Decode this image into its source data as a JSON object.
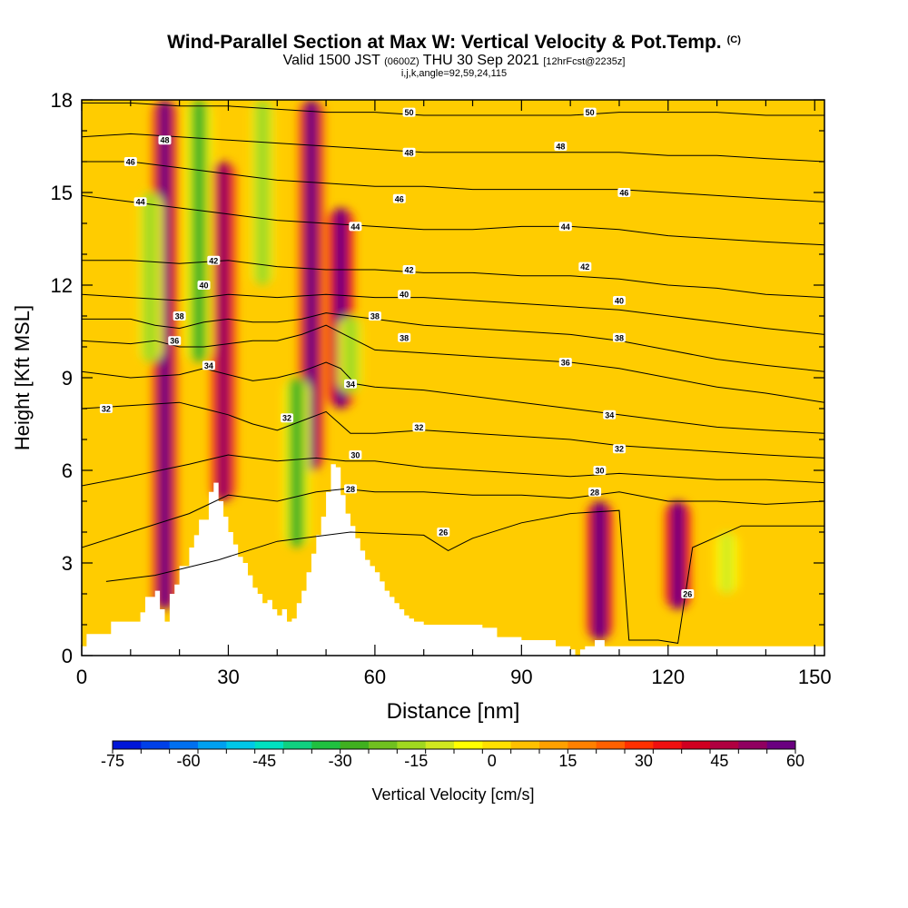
{
  "title": "Wind-Parallel Section at Max W: Vertical Velocity & Pot.Temp.",
  "title_mark": "(C)",
  "subtitle": {
    "valid": "Valid 1500 JST",
    "utc": "(0600Z)",
    "date": "THU 30 Sep 2021",
    "forecast": "[12hrFcst@2235z]"
  },
  "params": "i,j,k,angle=92,59,24,115",
  "chart_data": {
    "type": "heatmap",
    "xlabel": "Distance [nm]",
    "ylabel": "Height [Kft MSL]",
    "xlim": [
      0,
      152
    ],
    "ylim": [
      0,
      18
    ],
    "x_ticks": [
      0,
      30,
      60,
      90,
      120,
      150
    ],
    "y_ticks": [
      0,
      3,
      6,
      9,
      12,
      15,
      18
    ],
    "colorbar": {
      "label": "Vertical Velocity [cm/s]",
      "min": -75,
      "max": 60,
      "step": 5,
      "tick_labels": [
        -75,
        -60,
        -45,
        -30,
        -15,
        0,
        15,
        30,
        45,
        60
      ],
      "colors": [
        "#0016d8",
        "#0040e8",
        "#0070f0",
        "#00a0f0",
        "#00c8e8",
        "#00e0c0",
        "#10d080",
        "#20c040",
        "#40b020",
        "#70c020",
        "#a0d820",
        "#d0e820",
        "#ffff00",
        "#ffe000",
        "#ffc000",
        "#ffa000",
        "#ff8000",
        "#ff6000",
        "#ff3000",
        "#f01010",
        "#d00020",
        "#b00040",
        "#900060",
        "#6a0080"
      ]
    },
    "updrafts_cm_s": [
      {
        "x": 17,
        "y_bottom": 1.5,
        "y_top": 18,
        "max": 40
      },
      {
        "x": 29,
        "y_bottom": 5.0,
        "y_top": 16,
        "max": 35
      },
      {
        "x": 47,
        "y_bottom": 6.0,
        "y_top": 18,
        "max": 40
      },
      {
        "x": 53,
        "y_bottom": 8.0,
        "y_top": 14.5,
        "max": 45
      },
      {
        "x": 106,
        "y_bottom": 0.5,
        "y_top": 5,
        "max": 50
      },
      {
        "x": 122,
        "y_bottom": 1.5,
        "y_top": 5,
        "max": 45
      }
    ],
    "downdrafts_cm_s": [
      {
        "x": 14,
        "y_bottom": 9.5,
        "y_top": 15,
        "min": -25
      },
      {
        "x": 24,
        "y_bottom": 9.5,
        "y_top": 18,
        "min": -35
      },
      {
        "x": 37,
        "y_bottom": 12,
        "y_top": 18,
        "min": -25
      },
      {
        "x": 44,
        "y_bottom": 3.5,
        "y_top": 9,
        "min": -35
      },
      {
        "x": 55,
        "y_bottom": 8.5,
        "y_top": 11,
        "min": -25
      },
      {
        "x": 132,
        "y_bottom": 2,
        "y_top": 4,
        "min": -20
      }
    ],
    "terrain_kft": {
      "x": [
        0,
        1,
        5,
        6,
        10,
        12,
        13,
        15,
        16,
        17,
        18,
        19,
        20,
        22,
        23,
        24,
        26,
        27,
        28,
        29,
        30,
        31,
        32,
        33,
        34,
        35,
        36,
        37,
        38,
        39,
        40,
        41,
        42,
        43,
        44,
        45,
        46,
        47,
        48,
        49,
        50,
        51,
        52,
        53,
        54,
        55,
        56,
        57,
        58,
        59,
        60,
        61,
        62,
        63,
        64,
        65,
        66,
        67,
        68,
        70,
        73,
        76,
        80,
        82,
        85,
        88,
        90,
        95,
        97,
        100,
        101,
        102,
        103,
        105,
        107,
        110,
        130,
        152
      ],
      "y": [
        0.3,
        0.7,
        0.7,
        1.1,
        1.1,
        1.4,
        1.9,
        2.1,
        1.5,
        1.1,
        2.0,
        2.3,
        2.9,
        3.5,
        3.9,
        4.4,
        5.3,
        5.6,
        5.0,
        4.5,
        4.0,
        3.6,
        3.2,
        3.0,
        2.6,
        2.2,
        2.0,
        1.7,
        1.8,
        1.5,
        1.3,
        1.5,
        1.1,
        1.2,
        1.7,
        2.1,
        2.7,
        3.3,
        3.9,
        4.5,
        5.3,
        6.2,
        6.1,
        5.2,
        4.6,
        4.2,
        3.8,
        3.4,
        3.1,
        2.9,
        2.7,
        2.4,
        2.1,
        1.9,
        1.7,
        1.5,
        1.3,
        1.2,
        1.1,
        1.0,
        1.0,
        1.0,
        1.0,
        0.9,
        0.6,
        0.6,
        0.5,
        0.5,
        0.3,
        0.2,
        0.0,
        0.2,
        0.3,
        0.5,
        0.3,
        0.3,
        0.3,
        0.3
      ]
    },
    "isentropes": [
      {
        "label": "26",
        "x": [
          5,
          15,
          28,
          40,
          55,
          70,
          75,
          80,
          90,
          100,
          110,
          112,
          118,
          122,
          125,
          135,
          152
        ],
        "y": [
          2.4,
          2.6,
          3.1,
          3.7,
          4.0,
          3.9,
          3.4,
          3.8,
          4.3,
          4.6,
          4.7,
          0.5,
          0.5,
          0.4,
          3.5,
          4.2,
          4.2
        ]
      },
      {
        "label": "28",
        "x": [
          0,
          10,
          22,
          30,
          40,
          48,
          54,
          60,
          70,
          80,
          90,
          100,
          110,
          120,
          130,
          140,
          152
        ],
        "y": [
          3.5,
          4.0,
          4.6,
          5.2,
          5.0,
          5.3,
          5.4,
          5.3,
          5.3,
          5.2,
          5.2,
          5.1,
          5.3,
          5.0,
          5.0,
          4.9,
          5.0
        ]
      },
      {
        "label": "30",
        "x": [
          0,
          10,
          22,
          30,
          40,
          48,
          54,
          60,
          70,
          80,
          90,
          100,
          110,
          120,
          130,
          140,
          152
        ],
        "y": [
          5.5,
          5.8,
          6.2,
          6.5,
          6.3,
          6.4,
          6.3,
          6.3,
          6.1,
          6.0,
          5.9,
          5.8,
          5.9,
          5.8,
          5.7,
          5.7,
          5.6
        ]
      },
      {
        "label": "32",
        "x": [
          0,
          10,
          20,
          25,
          30,
          35,
          40,
          45,
          50,
          55,
          60,
          70,
          80,
          90,
          100,
          110,
          120,
          130,
          140,
          152
        ],
        "y": [
          8.0,
          8.1,
          8.2,
          8.0,
          7.8,
          7.5,
          7.3,
          7.6,
          7.9,
          7.2,
          7.2,
          7.3,
          7.2,
          7.1,
          7.0,
          6.8,
          6.7,
          6.6,
          6.5,
          6.4
        ]
      },
      {
        "label": "34",
        "x": [
          0,
          10,
          20,
          25,
          30,
          35,
          40,
          45,
          50,
          53,
          56,
          60,
          70,
          80,
          90,
          100,
          110,
          120,
          130,
          140,
          152
        ],
        "y": [
          9.2,
          9.0,
          9.1,
          9.3,
          9.1,
          8.9,
          9.0,
          9.2,
          9.5,
          9.3,
          8.8,
          8.7,
          8.6,
          8.4,
          8.2,
          8.0,
          7.8,
          7.6,
          7.4,
          7.3,
          7.2
        ]
      },
      {
        "label": "36",
        "x": [
          0,
          10,
          15,
          20,
          25,
          30,
          35,
          40,
          45,
          50,
          55,
          60,
          70,
          80,
          90,
          100,
          110,
          120,
          130,
          140,
          152
        ],
        "y": [
          10.2,
          10.1,
          10.2,
          10.0,
          10.0,
          10.1,
          10.2,
          10.2,
          10.4,
          10.7,
          10.3,
          9.9,
          9.8,
          9.7,
          9.6,
          9.5,
          9.3,
          9.0,
          8.7,
          8.5,
          8.2
        ]
      },
      {
        "label": "38",
        "x": [
          0,
          10,
          15,
          20,
          25,
          30,
          35,
          40,
          45,
          50,
          55,
          60,
          70,
          80,
          90,
          100,
          110,
          120,
          130,
          140,
          152
        ],
        "y": [
          10.9,
          10.9,
          10.7,
          10.6,
          10.8,
          10.9,
          10.8,
          10.8,
          10.9,
          11.1,
          11.0,
          10.9,
          10.7,
          10.6,
          10.5,
          10.4,
          10.2,
          9.9,
          9.6,
          9.4,
          9.2
        ]
      },
      {
        "label": "40",
        "x": [
          0,
          10,
          20,
          30,
          40,
          50,
          60,
          70,
          80,
          90,
          100,
          110,
          120,
          130,
          140,
          152
        ],
        "y": [
          11.7,
          11.6,
          11.5,
          11.7,
          11.6,
          11.7,
          11.6,
          11.6,
          11.5,
          11.4,
          11.3,
          11.2,
          11.0,
          10.8,
          10.6,
          10.4
        ]
      },
      {
        "label": "42",
        "x": [
          0,
          10,
          20,
          30,
          40,
          50,
          60,
          70,
          80,
          90,
          100,
          110,
          120,
          130,
          140,
          152
        ],
        "y": [
          12.8,
          12.8,
          12.7,
          12.8,
          12.6,
          12.5,
          12.5,
          12.4,
          12.4,
          12.3,
          12.3,
          12.2,
          12.0,
          11.9,
          11.7,
          11.6
        ]
      },
      {
        "label": "44",
        "x": [
          0,
          10,
          20,
          30,
          40,
          50,
          60,
          70,
          80,
          90,
          100,
          110,
          120,
          130,
          140,
          152
        ],
        "y": [
          14.9,
          14.7,
          14.5,
          14.3,
          14.1,
          14.0,
          13.9,
          13.8,
          13.8,
          13.9,
          13.9,
          13.8,
          13.6,
          13.5,
          13.4,
          13.3
        ]
      },
      {
        "label": "46",
        "x": [
          0,
          10,
          20,
          30,
          40,
          50,
          60,
          70,
          80,
          90,
          100,
          110,
          120,
          130,
          140,
          152
        ],
        "y": [
          16.0,
          16.0,
          15.8,
          15.6,
          15.4,
          15.3,
          15.2,
          15.2,
          15.1,
          15.1,
          15.1,
          15.1,
          15.0,
          14.9,
          14.8,
          14.7
        ]
      },
      {
        "label": "48",
        "x": [
          0,
          10,
          20,
          30,
          40,
          50,
          60,
          70,
          80,
          90,
          100,
          110,
          120,
          130,
          140,
          152
        ],
        "y": [
          16.8,
          16.9,
          16.8,
          16.7,
          16.6,
          16.5,
          16.4,
          16.3,
          16.3,
          16.3,
          16.3,
          16.3,
          16.2,
          16.2,
          16.1,
          16.0
        ]
      },
      {
        "label": "50",
        "x": [
          0,
          10,
          20,
          30,
          40,
          50,
          60,
          70,
          80,
          90,
          100,
          110,
          120,
          130,
          140,
          152
        ],
        "y": [
          17.9,
          17.9,
          17.8,
          17.8,
          17.7,
          17.6,
          17.6,
          17.5,
          17.5,
          17.5,
          17.5,
          17.6,
          17.6,
          17.6,
          17.5,
          17.5
        ]
      }
    ],
    "contour_labels": [
      {
        "text": "26",
        "x": 74,
        "y": 4.0
      },
      {
        "text": "26",
        "x": 124,
        "y": 2.0
      },
      {
        "text": "28",
        "x": 55,
        "y": 5.4
      },
      {
        "text": "28",
        "x": 105,
        "y": 5.3
      },
      {
        "text": "30",
        "x": 56,
        "y": 6.5
      },
      {
        "text": "30",
        "x": 106,
        "y": 6.0
      },
      {
        "text": "32",
        "x": 5,
        "y": 8.0
      },
      {
        "text": "32",
        "x": 42,
        "y": 7.7
      },
      {
        "text": "32",
        "x": 69,
        "y": 7.4
      },
      {
        "text": "32",
        "x": 110,
        "y": 6.7
      },
      {
        "text": "34",
        "x": 26,
        "y": 9.4
      },
      {
        "text": "34",
        "x": 55,
        "y": 8.8
      },
      {
        "text": "34",
        "x": 108,
        "y": 7.8
      },
      {
        "text": "36",
        "x": 19,
        "y": 10.2
      },
      {
        "text": "36",
        "x": 99,
        "y": 9.5
      },
      {
        "text": "38",
        "x": 20,
        "y": 11.0
      },
      {
        "text": "38",
        "x": 60,
        "y": 11.0
      },
      {
        "text": "38",
        "x": 66,
        "y": 10.3
      },
      {
        "text": "38",
        "x": 110,
        "y": 10.3
      },
      {
        "text": "40",
        "x": 25,
        "y": 12.0
      },
      {
        "text": "40",
        "x": 66,
        "y": 11.7
      },
      {
        "text": "40",
        "x": 110,
        "y": 11.5
      },
      {
        "text": "42",
        "x": 27,
        "y": 12.8
      },
      {
        "text": "42",
        "x": 67,
        "y": 12.5
      },
      {
        "text": "42",
        "x": 103,
        "y": 12.6
      },
      {
        "text": "44",
        "x": 12,
        "y": 14.7
      },
      {
        "text": "44",
        "x": 56,
        "y": 13.9
      },
      {
        "text": "44",
        "x": 99,
        "y": 13.9
      },
      {
        "text": "46",
        "x": 10,
        "y": 16.0
      },
      {
        "text": "46",
        "x": 65,
        "y": 14.8
      },
      {
        "text": "46",
        "x": 111,
        "y": 15.0
      },
      {
        "text": "48",
        "x": 17,
        "y": 16.7
      },
      {
        "text": "48",
        "x": 67,
        "y": 16.3
      },
      {
        "text": "48",
        "x": 98,
        "y": 16.5
      },
      {
        "text": "50",
        "x": 67,
        "y": 17.6
      },
      {
        "text": "50",
        "x": 104,
        "y": 17.6
      }
    ]
  }
}
